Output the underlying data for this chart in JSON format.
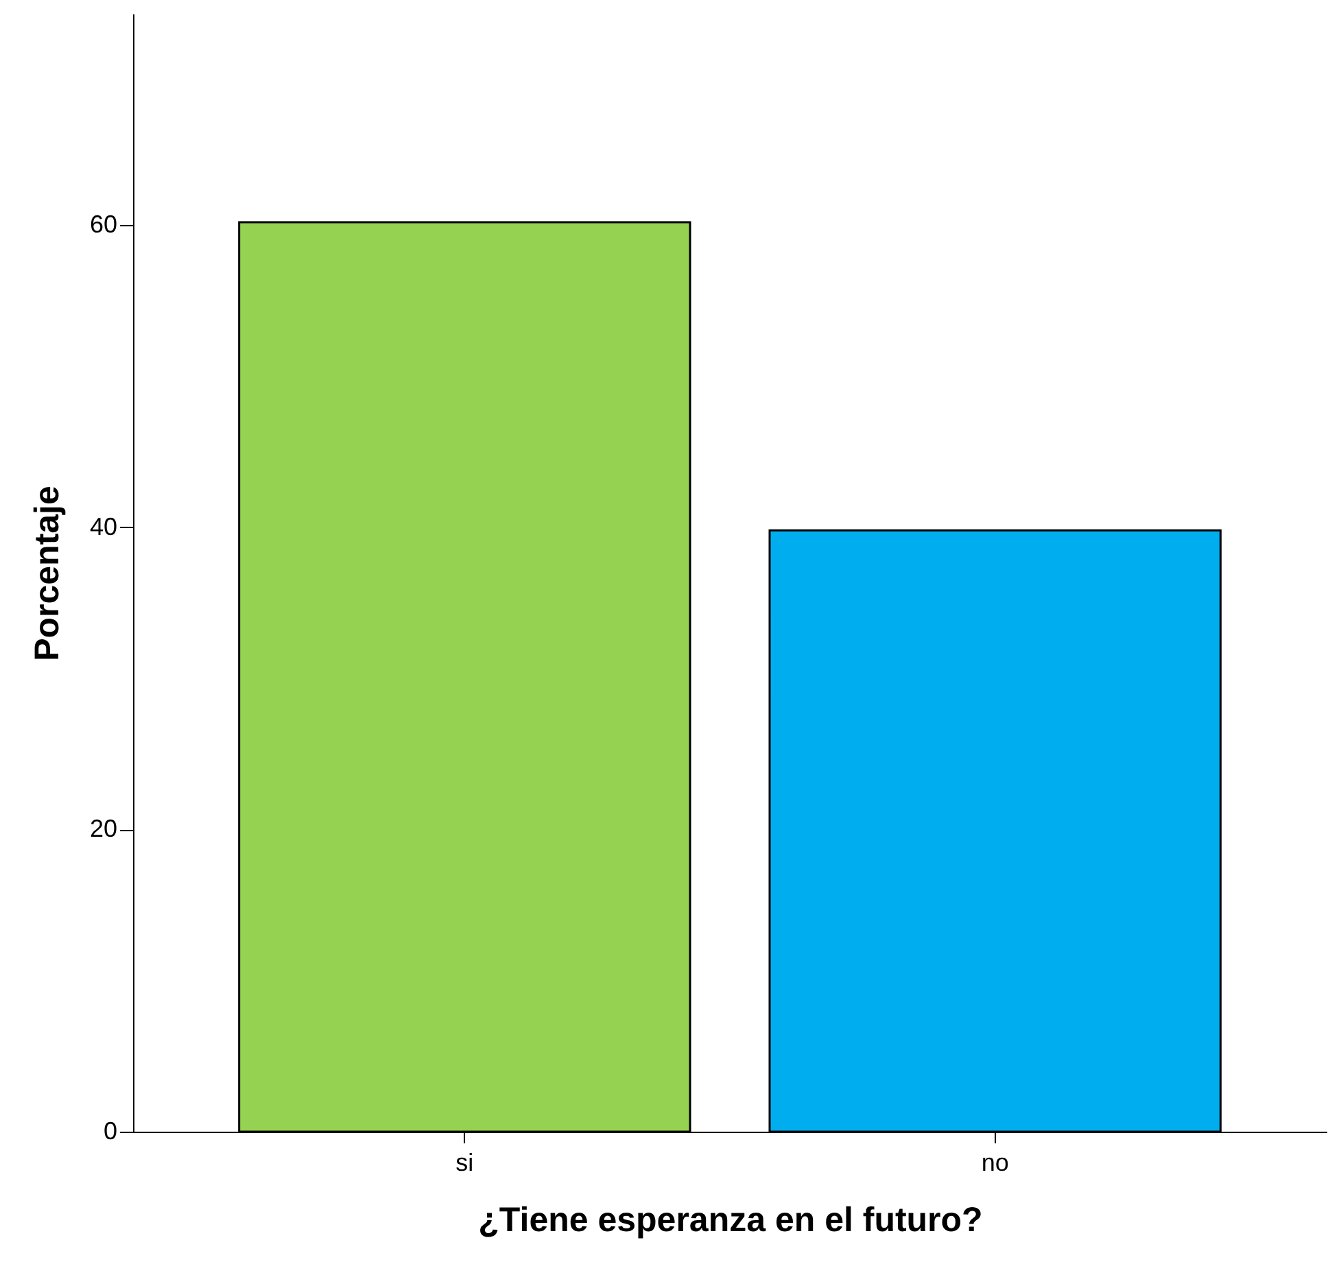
{
  "chart_data": {
    "type": "bar",
    "xlabel": "¿Tiene esperanza en el futuro?",
    "ylabel": "Porcentaje",
    "categories": [
      "si",
      "no"
    ],
    "values": [
      60.2,
      39.8
    ],
    "colors": [
      "#95d251",
      "#00aeef"
    ],
    "ylim": [
      0,
      74
    ],
    "yticks": [
      0,
      20,
      40,
      60
    ],
    "grid": false
  }
}
